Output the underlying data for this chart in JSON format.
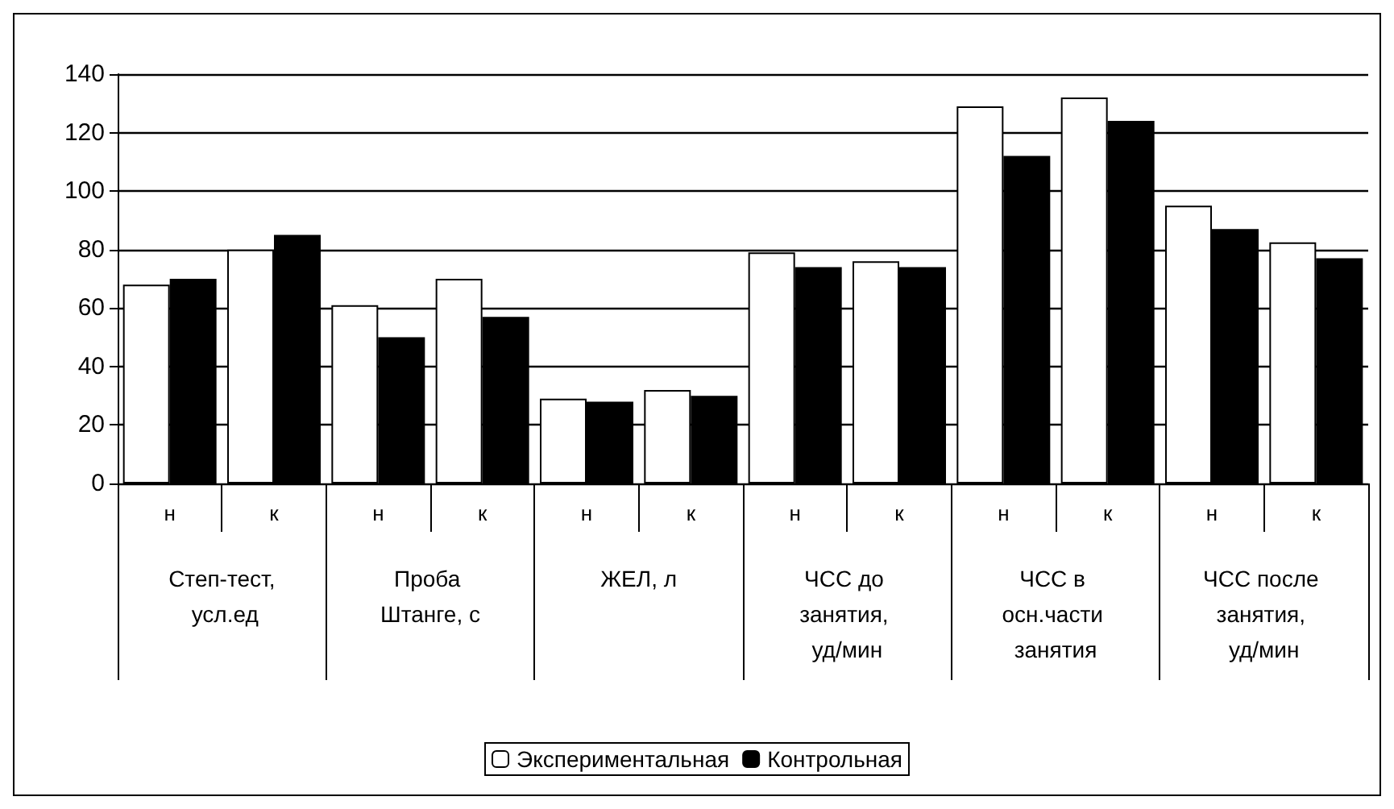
{
  "chart_data": {
    "type": "bar",
    "categories": [
      "н",
      "к",
      "н",
      "к",
      "н",
      "к",
      "н",
      "к",
      "н",
      "к",
      "н",
      "к"
    ],
    "annotations": [
      "Степ-тест, усл.ед",
      "Проба Штанге, с",
      "ЖЕЛ, л",
      "ЧСС до занятия, уд/мин",
      "ЧСС в осн.части занятия",
      "ЧСС после занятия, уд/мин"
    ],
    "series": [
      {
        "name": "Экспериментальная",
        "color": "#ffffff",
        "values": [
          68,
          80,
          61,
          70,
          29,
          32,
          79,
          76,
          129,
          132,
          95,
          82.5
        ]
      },
      {
        "name": "Контрольная",
        "color": "#000000",
        "values": [
          70,
          85,
          50,
          57,
          28,
          30,
          74,
          74,
          112,
          124,
          87,
          77
        ]
      }
    ],
    "ylim": [
      0,
      140
    ],
    "yticks": [
      0,
      20,
      40,
      60,
      80,
      100,
      120,
      140
    ],
    "grid": "y",
    "legend": "bottom"
  }
}
